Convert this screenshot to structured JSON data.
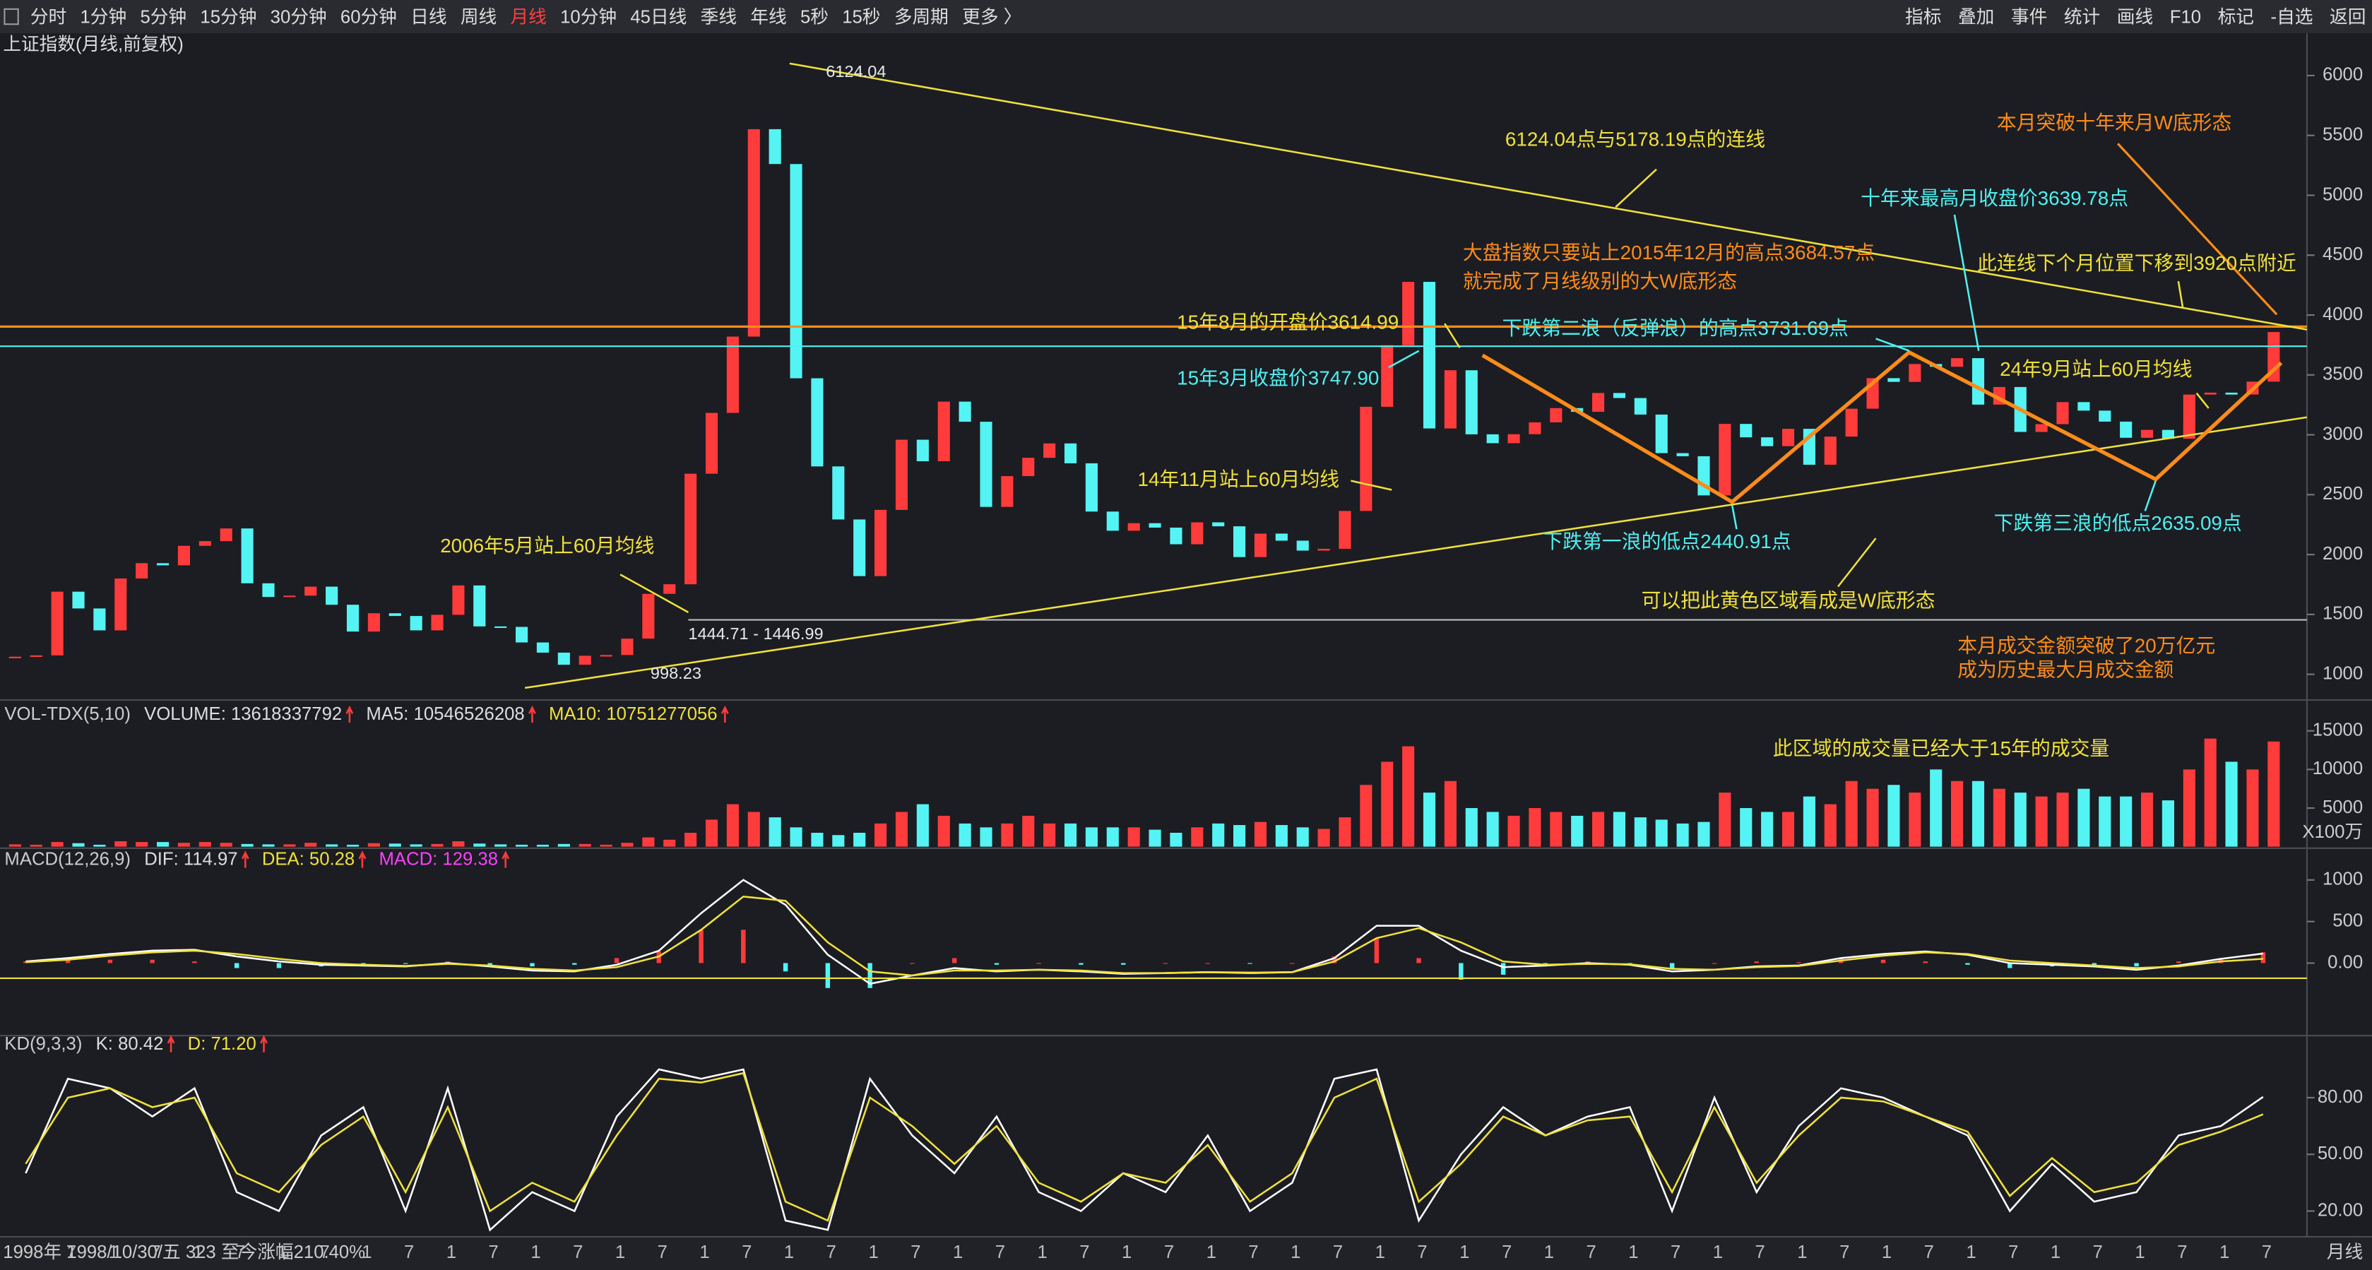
{
  "toolbar": {
    "left": [
      "分时",
      "1分钟",
      "5分钟",
      "15分钟",
      "30分钟",
      "60分钟",
      "日线",
      "周线",
      "月线",
      "10分钟",
      "45日线",
      "季线",
      "年线",
      "5秒",
      "15秒",
      "多周期",
      "更多 〉"
    ],
    "active": 8,
    "right": [
      "指标",
      "叠加",
      "事件",
      "统计",
      "画线",
      "F10",
      "标记",
      "-自选",
      "返回"
    ]
  },
  "price_panel": {
    "title": "上证指数(月线,前复权)",
    "type": "candlestick",
    "ylim": [
      798,
      6353
    ],
    "yticks": [
      6000,
      5500,
      5000,
      4500,
      4000,
      3500,
      3000,
      2500,
      2000,
      1500,
      1000
    ],
    "up_color": "#ff3b3b",
    "down_color": "#54f4f4",
    "closes": [
      1147,
      1158,
      1690,
      1550,
      1367,
      1800,
      1928,
      1910,
      2073,
      2112,
      2218,
      1760,
      1646,
      1657,
      1732,
      1581,
      1357,
      1510,
      1487,
      1367,
      1497,
      1742,
      1400,
      1396,
      1266,
      1181,
      1080,
      1155,
      1161,
      1298,
      1672,
      1752,
      2675,
      3183,
      3820,
      5552,
      5261,
      3472,
      2736,
      2293,
      1820,
      2373,
      2959,
      2779,
      3277,
      3109,
      2398,
      2655,
      2808,
      2928,
      2762,
      2359,
      2199,
      2262,
      2225,
      2086,
      2269,
      2236,
      1979,
      2175,
      2116,
      2033,
      2048,
      2364,
      3234,
      3748,
      4277,
      3053,
      3539,
      3004,
      2930,
      3005,
      3104,
      3223,
      3192,
      3349,
      3307,
      3169,
      2847,
      2821,
      2494,
      3091,
      2979,
      2905,
      3050,
      2750,
      2985,
      3218,
      3473,
      3442,
      3591,
      3568,
      3640,
      3252,
      3399,
      3024,
      3089,
      3273,
      3202,
      3110,
      2975,
      3041,
      2967,
      3336,
      3352,
      3336,
      3444,
      3858
    ],
    "annotations": [
      {
        "text": "6124.04",
        "color": "#e8e8e8"
      },
      {
        "text": "6124.04点与5178.19点的连线",
        "color": "#f0e03c"
      },
      {
        "text": "本月突破十年来月W底形态",
        "color": "#ff8c1a"
      },
      {
        "text": "十年来最高月收盘价3639.78点",
        "color": "#4ff0f0"
      },
      {
        "text": "大盘指数只要站上2015年12月的高点3684.57点",
        "color": "#ff8c1a"
      },
      {
        "text": "就完成了月线级别的大W底形态",
        "color": "#ff8c1a"
      },
      {
        "text": "此连线下个月位置下移到3920点附近",
        "color": "#f0e03c"
      },
      {
        "text": "15年8月的开盘价3614.99",
        "color": "#f0e03c"
      },
      {
        "text": "下跌第二浪（反弹浪）的高点3731.69点",
        "color": "#4ff0f0"
      },
      {
        "text": "15年3月收盘价3747.90",
        "color": "#4ff0f0"
      },
      {
        "text": "24年9月站上60月均线",
        "color": "#f0e03c"
      },
      {
        "text": "14年11月站上60月均线",
        "color": "#f0e03c"
      },
      {
        "text": "下跌第一浪的低点2440.91点",
        "color": "#4ff0f0"
      },
      {
        "text": "下跌第三浪的低点2635.09点",
        "color": "#4ff0f0"
      },
      {
        "text": "2006年5月站上60月均线",
        "color": "#f0e03c"
      },
      {
        "text": "可以把此黄色区域看成是W底形态",
        "color": "#f0e03c"
      },
      {
        "text": "1444.71 - 1446.99",
        "color": "#e8e8e8"
      },
      {
        "text": "998.23",
        "color": "#e8e8e8"
      },
      {
        "text": "本月成交金额突破了20万亿元",
        "color": "#ff8c1a"
      },
      {
        "text": "成为历史最大月成交金额",
        "color": "#ff8c1a"
      }
    ]
  },
  "volume_panel": {
    "header": [
      {
        "text": "VOL-TDX(5,10)",
        "color": "#cccccc",
        "arrow": false
      },
      {
        "text": "VOLUME: 13618337792",
        "color": "#dddddd",
        "arrow": true
      },
      {
        "text": "MA5: 10546526208",
        "color": "#dddddd",
        "arrow": true
      },
      {
        "text": "MA10: 10751277056",
        "color": "#f0e03c",
        "arrow": true
      }
    ],
    "ylim": [
      0,
      18800
    ],
    "yticks": [
      15000,
      10000,
      5000
    ],
    "unit": "X100万",
    "values": [
      300,
      250,
      600,
      450,
      250,
      700,
      600,
      600,
      500,
      600,
      500,
      350,
      300,
      300,
      500,
      300,
      250,
      450,
      400,
      300,
      350,
      700,
      400,
      300,
      250,
      250,
      350,
      350,
      250,
      500,
      1200,
      900,
      1800,
      3500,
      5500,
      4500,
      3800,
      2500,
      1800,
      1500,
      1800,
      3000,
      4500,
      5500,
      4000,
      3000,
      2500,
      3000,
      4000,
      3000,
      3000,
      2500,
      2500,
      2500,
      2200,
      1800,
      2500,
      3000,
      2800,
      3200,
      2800,
      2500,
      2300,
      3800,
      8000,
      11000,
      13000,
      7000,
      8500,
      5000,
      4500,
      4000,
      5000,
      4500,
      4000,
      4500,
      4500,
      3800,
      3500,
      3000,
      3200,
      7000,
      5000,
      4500,
      4500,
      6500,
      5500,
      8500,
      7500,
      8000,
      7000,
      10000,
      8500,
      8500,
      7500,
      7000,
      6500,
      7000,
      7500,
      6500,
      6500,
      7000,
      6000,
      10000,
      14000,
      11000,
      10000,
      13618
    ],
    "annotation": {
      "text": "此区域的成交量已经大于15年的成交量",
      "color": "#f0e03c"
    }
  },
  "macd_panel": {
    "header": [
      {
        "text": "MACD(12,26,9)",
        "color": "#cccccc",
        "arrow": false
      },
      {
        "text": "DIF: 114.97",
        "color": "#dddddd",
        "arrow": true
      },
      {
        "text": "DEA: 50.28",
        "color": "#f0e03c",
        "arrow": true
      },
      {
        "text": "MACD: 129.38",
        "color": "#ff40ff",
        "arrow": true
      }
    ],
    "ylim": [
      -873,
      1364
    ],
    "yticks": [
      1000,
      500,
      {
        "value": 0,
        "label": "0.00"
      }
    ],
    "dif": [
      20,
      60,
      110,
      150,
      160,
      80,
      20,
      -20,
      -30,
      -40,
      0,
      -40,
      -90,
      -100,
      -20,
      150,
      600,
      1000,
      700,
      100,
      -250,
      -150,
      -60,
      -100,
      -80,
      -100,
      -130,
      -120,
      -110,
      -120,
      -110,
      60,
      450,
      450,
      150,
      -50,
      -30,
      0,
      -20,
      -100,
      -80,
      -40,
      -30,
      60,
      110,
      140,
      100,
      0,
      -20,
      -40,
      -80,
      -30,
      50,
      114.97
    ],
    "dea": [
      10,
      40,
      90,
      130,
      150,
      110,
      50,
      0,
      -20,
      -35,
      -10,
      -30,
      -70,
      -90,
      -50,
      80,
      400,
      800,
      750,
      250,
      -100,
      -150,
      -90,
      -90,
      -80,
      -90,
      -120,
      -120,
      -110,
      -115,
      -110,
      20,
      300,
      420,
      250,
      20,
      -20,
      -10,
      -15,
      -70,
      -80,
      -50,
      -35,
      30,
      90,
      130,
      110,
      30,
      0,
      -30,
      -60,
      -40,
      20,
      50.28
    ],
    "macd": [
      20,
      40,
      40,
      40,
      20,
      -60,
      -60,
      -40,
      -20,
      -10,
      20,
      -20,
      -40,
      -20,
      60,
      140,
      400,
      400,
      -100,
      -300,
      -300,
      0,
      60,
      -20,
      0,
      -20,
      -20,
      0,
      0,
      -10,
      0,
      80,
      300,
      60,
      -200,
      -140,
      -20,
      20,
      -10,
      -60,
      0,
      20,
      10,
      60,
      40,
      20,
      -20,
      -60,
      -40,
      -20,
      -40,
      20,
      60,
      129.38
    ]
  },
  "kd_panel": {
    "header": [
      {
        "text": "KD(9,3,3)",
        "color": "#cccccc",
        "arrow": false
      },
      {
        "text": "K: 80.42",
        "color": "#dddddd",
        "arrow": true
      },
      {
        "text": "D: 71.20",
        "color": "#f0e03c",
        "arrow": true
      }
    ],
    "ylim": [
      6.4,
      112.8
    ],
    "yticks": [
      {
        "value": 80,
        "label": "80.00"
      },
      {
        "value": 50,
        "label": "50.00"
      },
      {
        "value": 20,
        "label": "20.00"
      }
    ],
    "k": [
      40,
      90,
      85,
      70,
      85,
      30,
      20,
      60,
      75,
      20,
      85,
      10,
      30,
      20,
      70,
      95,
      90,
      95,
      15,
      10,
      90,
      60,
      40,
      70,
      30,
      20,
      40,
      30,
      60,
      20,
      35,
      90,
      95,
      15,
      50,
      75,
      60,
      70,
      75,
      20,
      80,
      30,
      65,
      85,
      80,
      70,
      60,
      20,
      45,
      25,
      30,
      60,
      65,
      80.42
    ],
    "d": [
      45,
      80,
      85,
      75,
      80,
      40,
      30,
      55,
      70,
      30,
      75,
      20,
      35,
      25,
      60,
      90,
      88,
      93,
      25,
      15,
      80,
      65,
      45,
      65,
      35,
      25,
      40,
      35,
      55,
      25,
      40,
      80,
      90,
      25,
      45,
      70,
      60,
      68,
      70,
      30,
      75,
      35,
      60,
      80,
      78,
      70,
      62,
      28,
      48,
      30,
      35,
      55,
      62,
      71.2
    ]
  },
  "status_bar": {
    "info": "1998年 1998/10/30/五 323 至今涨幅210.40%",
    "period": "月线",
    "x_labels": [
      "7",
      "1",
      "7",
      "1",
      "7",
      "1",
      "7",
      "1",
      "7",
      "1",
      "7",
      "1",
      "7",
      "1",
      "7",
      "1",
      "7",
      "1",
      "7",
      "1",
      "7",
      "1",
      "7",
      "1",
      "7",
      "1",
      "7",
      "1",
      "7",
      "1",
      "7",
      "1",
      "7",
      "1",
      "7",
      "1",
      "7",
      "1",
      "7",
      "1",
      "7",
      "1",
      "7",
      "1",
      "7",
      "1",
      "7",
      "1",
      "7",
      "1",
      "7",
      "1",
      "7"
    ]
  }
}
